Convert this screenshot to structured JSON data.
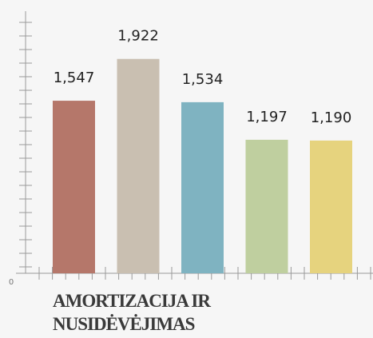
{
  "chart_data": {
    "type": "bar",
    "title": "AMORTIZACIJA IR NUSIDĖVĖJIMAS",
    "categories": [
      null,
      null,
      null,
      null,
      null
    ],
    "values": [
      1547,
      1922,
      1534,
      1197,
      1190
    ],
    "value_labels": [
      "1,547",
      "1,922",
      "1,534",
      "1,197",
      "1,190"
    ],
    "colors": [
      "#b5776a",
      "#c9bfb1",
      "#7fb3c1",
      "#bfcf9f",
      "#e6d37e"
    ],
    "ylim": [
      0,
      2350
    ],
    "yticks": [
      0
    ],
    "grid": false
  }
}
